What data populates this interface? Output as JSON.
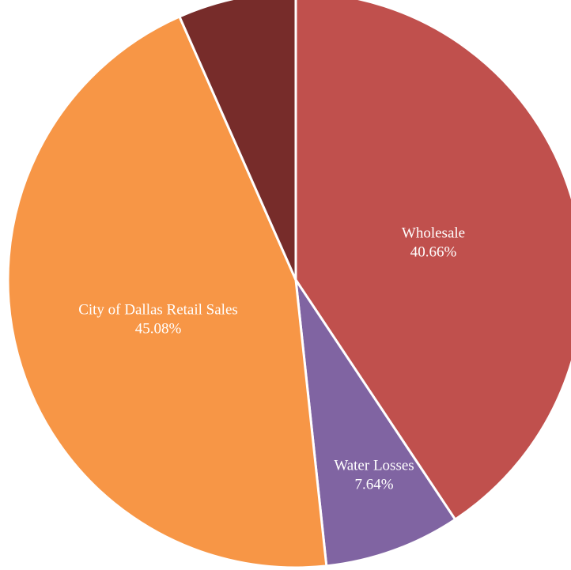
{
  "chart_data": {
    "type": "pie",
    "categories": [
      "Wholesale",
      "Water Losses",
      "City of Dallas Retail Sales",
      null
    ],
    "values": [
      40.66,
      7.64,
      45.08,
      6.62
    ],
    "value_labels": [
      "40.66%",
      "7.64%",
      "45.08%",
      "6.62%"
    ],
    "colors": [
      "#c0504d",
      "#8064a2",
      "#f79646",
      "#772c2a"
    ]
  }
}
